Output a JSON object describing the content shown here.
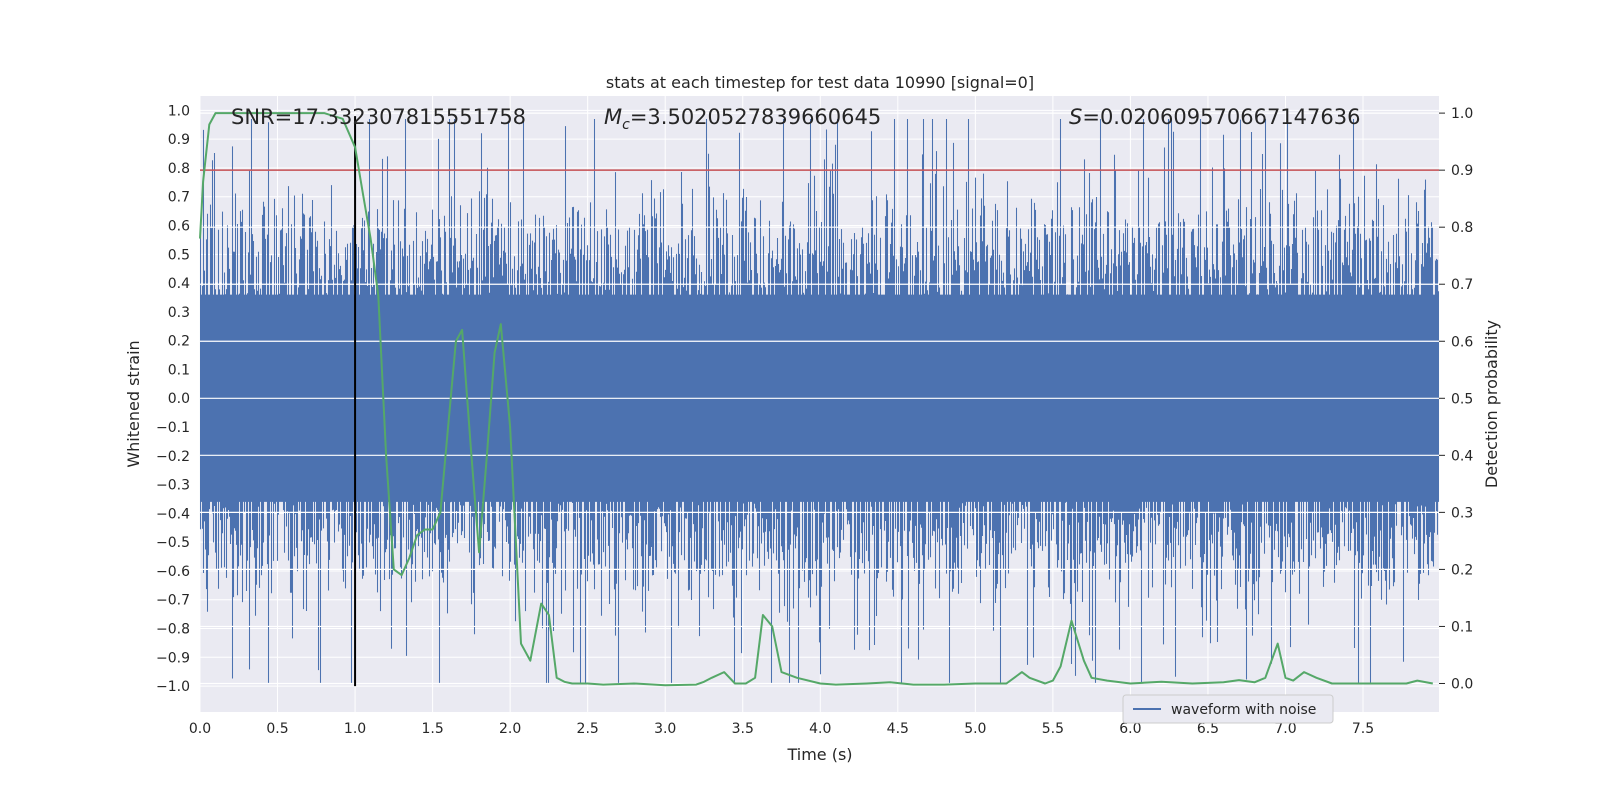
{
  "chart_data": {
    "type": "line",
    "title": "stats at each timestep for test data 10990 [signal=0]",
    "xlabel": "Time (s)",
    "ylabel_left": "Whitened strain",
    "ylabel_right": "Detection probability",
    "xlim": [
      0,
      7.99
    ],
    "ylim_left": [
      -1.09,
      1.05
    ],
    "ylim_right": [
      -0.05,
      1.03
    ],
    "x_ticks": [
      "0.0",
      "0.5",
      "1.0",
      "1.5",
      "2.0",
      "2.5",
      "3.0",
      "3.5",
      "4.0",
      "4.5",
      "5.0",
      "5.5",
      "6.0",
      "6.5",
      "7.0",
      "7.5"
    ],
    "y_ticks_left": [
      "1.0",
      "0.9",
      "0.8",
      "0.7",
      "0.6",
      "0.5",
      "0.4",
      "0.3",
      "0.2",
      "0.1",
      "0.0",
      "-0.1",
      "-0.2",
      "-0.3",
      "-0.4",
      "-0.5",
      "-0.6",
      "-0.7",
      "-0.8",
      "-0.9",
      "-1.0"
    ],
    "y_ticks_right": [
      "1.0",
      "0.9",
      "0.8",
      "0.7",
      "0.6",
      "0.5",
      "0.4",
      "0.3",
      "0.2",
      "0.1",
      "0.0"
    ],
    "grid": true,
    "annotations": {
      "snr": "SNR=17.332307815551758",
      "mc_symbol": "M",
      "mc_sub": "c",
      "mc_value": "=3.5020527839660645",
      "s_symbol": "S",
      "s_value": "=0.020609570667147636"
    },
    "legend": {
      "label": "waveform with noise",
      "position": "bottom-right"
    },
    "threshold_line": {
      "axis": "right",
      "value": 0.9,
      "color": "#c44e52"
    },
    "event_marker": {
      "x": 1.0,
      "y_range": [
        -1.0,
        0.98
      ],
      "color": "#000000"
    },
    "waveform": {
      "name": "waveform with noise",
      "color": "#4c72b0",
      "axis": "left",
      "sample_rate": 2048,
      "duration": 8.0,
      "core_amplitude": 0.36,
      "seed": 10990
    },
    "detection_probability": {
      "name": "detection probability",
      "color": "#55a868",
      "axis": "right",
      "x": [
        0.0,
        0.02,
        0.06,
        0.1,
        0.2,
        0.5,
        0.8,
        0.92,
        1.0,
        1.05,
        1.1,
        1.15,
        1.2,
        1.25,
        1.3,
        1.35,
        1.4,
        1.45,
        1.5,
        1.55,
        1.6,
        1.65,
        1.69,
        1.75,
        1.8,
        1.85,
        1.9,
        1.94,
        2.0,
        2.07,
        2.13,
        2.2,
        2.25,
        2.3,
        2.35,
        2.4,
        2.5,
        2.6,
        2.8,
        3.0,
        3.2,
        3.25,
        3.3,
        3.38,
        3.45,
        3.52,
        3.58,
        3.63,
        3.69,
        3.75,
        3.85,
        4.0,
        4.1,
        4.3,
        4.45,
        4.6,
        4.8,
        5.0,
        5.2,
        5.3,
        5.35,
        5.45,
        5.5,
        5.55,
        5.62,
        5.7,
        5.75,
        5.85,
        6.0,
        6.2,
        6.4,
        6.6,
        6.7,
        6.8,
        6.87,
        6.95,
        7.0,
        7.05,
        7.12,
        7.2,
        7.3,
        7.45,
        7.6,
        7.78,
        7.85,
        7.95
      ],
      "y": [
        0.78,
        0.88,
        0.98,
        1.0,
        1.0,
        1.0,
        1.0,
        0.99,
        0.94,
        0.86,
        0.78,
        0.68,
        0.4,
        0.2,
        0.19,
        0.22,
        0.26,
        0.27,
        0.27,
        0.3,
        0.45,
        0.6,
        0.62,
        0.4,
        0.23,
        0.4,
        0.58,
        0.63,
        0.45,
        0.07,
        0.04,
        0.14,
        0.12,
        0.01,
        0.003,
        0.0,
        0.0,
        -0.002,
        0.0,
        -0.003,
        -0.002,
        0.003,
        0.01,
        0.02,
        0.0,
        0.0,
        0.01,
        0.12,
        0.1,
        0.02,
        0.01,
        0.0,
        -0.002,
        0.0,
        0.002,
        -0.002,
        -0.002,
        0.0,
        0.0,
        0.02,
        0.01,
        0.0,
        0.005,
        0.03,
        0.11,
        0.04,
        0.01,
        0.005,
        0.0,
        0.003,
        0.0,
        0.002,
        0.006,
        0.002,
        0.01,
        0.07,
        0.01,
        0.005,
        0.02,
        0.01,
        0.0,
        0.0,
        0.0,
        0.0,
        0.005,
        0.0
      ]
    }
  }
}
